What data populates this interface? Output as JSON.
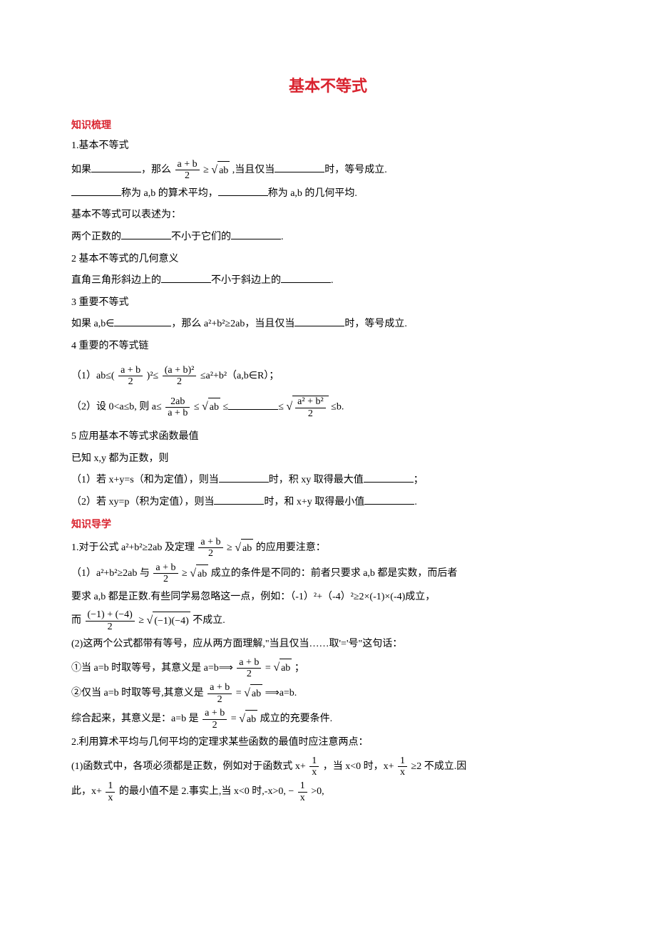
{
  "colors": {
    "title": "#d9232e",
    "heading": "#d9232e",
    "text": "#000000",
    "background": "#ffffff"
  },
  "title": "基本不等式",
  "h1": "知识梳理",
  "s1": {
    "num": "1.基本不等式",
    "l1a": "如果",
    "l1b": "，那么 ",
    "frac1_num": "a + b",
    "frac1_den": "2",
    "ge": " ≥ ",
    "sqrt1": "ab",
    "l1c": ",当且仅当",
    "l1d": "时，等号成立.",
    "l2a": "称为 a,b 的算术平均，",
    "l2b": "称为 a,b 的几何平均.",
    "l3": "基本不等式可以表述为：",
    "l4a": "两个正数的",
    "l4b": "不小于它们的",
    "l4c": "."
  },
  "s2": {
    "num": "2 基本不等式的几何意义",
    "l1a": "直角三角形斜边上的",
    "l1b": "不小于斜边上的",
    "l1c": "."
  },
  "s3": {
    "num": "3 重要不等式",
    "l1a": "如果 a,b∈",
    "l1b": "，那么 a²+b²≥2ab，当且仅当",
    "l1c": "时，等号成立."
  },
  "s4": {
    "num": "4 重要的不等式链",
    "l1a": "（1）ab≤(",
    "frac1_num": "a + b",
    "frac1_den": "2",
    "l1b": ")²≤",
    "frac2_num": "(a + b)²",
    "frac2_den": "2",
    "l1c": "≤a²+b²（a,b∈R）；",
    "l2a": "（2）设 0<a≤b, 则 a≤",
    "frac3_num": "2ab",
    "frac3_den": "a + b",
    "l2b": " ≤ ",
    "sqrt1": "ab",
    "l2c": " ≤",
    "l2d": "≤",
    "sqrt2_num": "a² + b²",
    "sqrt2_den": "2",
    "l2e": "≤b."
  },
  "s5": {
    "num": "5 应用基本不等式求函数最值",
    "l1": "已知 x,y 都为正数，则",
    "l2a": "（1）若 x+y=s（和为定值），则当",
    "l2b": "时，积 xy 取得最大值",
    "l2c": "；",
    "l3a": "（2）若 xy=p（积为定值），则当",
    "l3b": "时，和 x+y 取得最小值",
    "l3c": "."
  },
  "h2": "知识导学",
  "d1": {
    "l1a": "1.对于公式 a²+b²≥2ab 及定理 ",
    "frac_num": "a + b",
    "frac_den": "2",
    "ge": " ≥ ",
    "sqrt": "ab",
    "l1b": " 的应用要注意：",
    "l2a": "（1）a²+b²≥2ab 与 ",
    "l2b": " 成立的条件是不同的：前者只要求 a,b 都是实数，而后者",
    "l3": "要求 a,b 都是正数.有些同学易忽略这一点，例如：（-1）²+（-4）²≥2×(-1)×(-4)成立，",
    "l4a": "而",
    "frac2_num": "(−1) + (−4)",
    "frac2_den": "2",
    "sqrt2": "(−1)(−4)",
    "l4b": " 不成立.",
    "l5": "(2)这两个公式都带有等号，应从两方面理解,\"当且仅当……取'='号\"这句话：",
    "l6a": "①当 a=b 时取等号，其意义是 a=b⟹ ",
    "eq": " = ",
    "l6b": "；",
    "l7a": "②仅当 a=b 时取等号,其意义是 ",
    "l7b": " ⟹a=b.",
    "l8a": "综合起来，其意义是：a=b 是 ",
    "l8b": " 成立的充要条件."
  },
  "d2": {
    "l1": "2.利用算术平均与几何平均的定理求某些函数的最值时应注意两点：",
    "l2a": "(1)函数式中，各项必须都是正数，例如对于函数式 x+",
    "frac_num": "1",
    "frac_den": "x",
    "l2b": "，当 x<0 时，x+",
    "l2c": "≥2 不成立.因",
    "l3a": "此，x+",
    "l3b": "的最小值不是 2.事实上,当 x<0 时,-x>0, −",
    "l3c": ">0,"
  }
}
